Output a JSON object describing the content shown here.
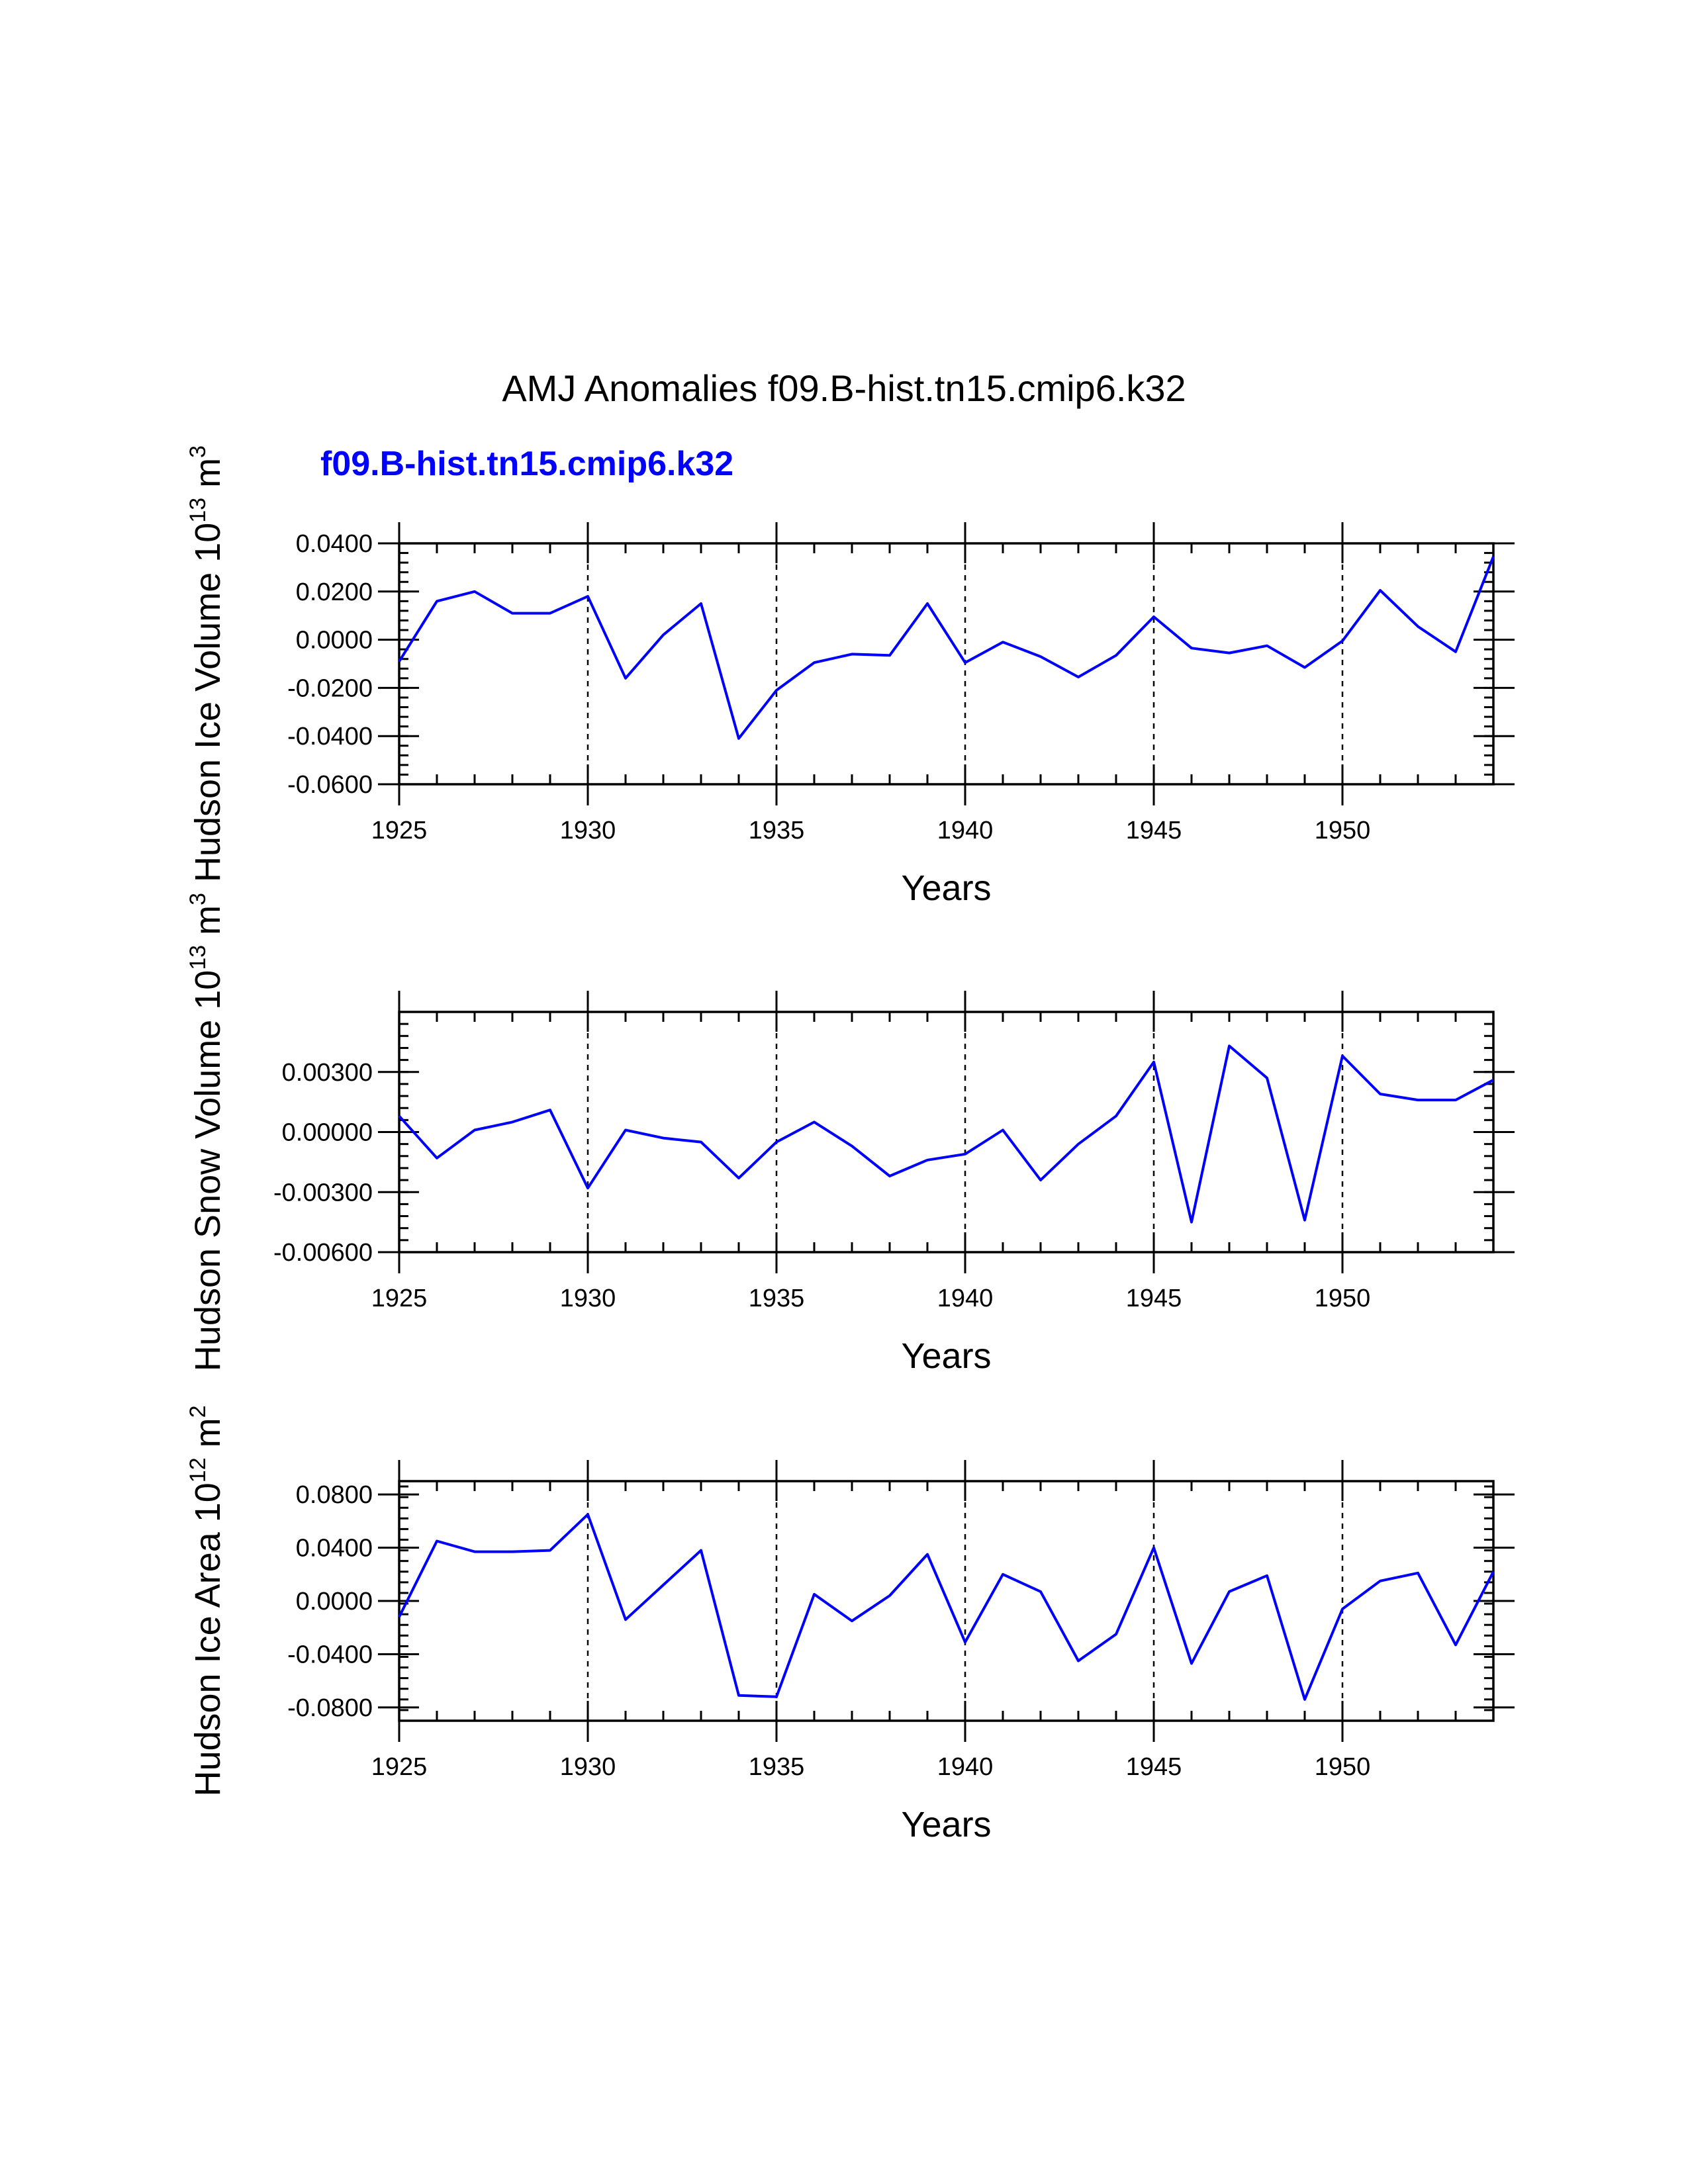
{
  "title": "AMJ Anomalies f09.B-hist.tn15.cmip6.k32",
  "subtitle": "f09.B-hist.tn15.cmip6.k32",
  "series_color": "#0000ff",
  "chart_data": [
    {
      "type": "line",
      "name": "ice-volume",
      "ylabel_main": "Hudson Ice Volume 10",
      "ylabel_exp": "13",
      "ylabel_unit": " m",
      "ylabel_unit_exp": "3",
      "xlabel": "Years",
      "xlim": [
        1925,
        1954
      ],
      "ylim": [
        -0.06,
        0.04
      ],
      "xticks": [
        1925,
        1930,
        1935,
        1940,
        1945,
        1950
      ],
      "xtick_labels": [
        "1925",
        "1930",
        "1935",
        "1940",
        "1945",
        "1950"
      ],
      "yticks": [
        -0.06,
        -0.04,
        -0.02,
        0.0,
        0.02,
        0.04
      ],
      "ytick_labels": [
        "-0.0600",
        "-0.0400",
        "-0.0200",
        "0.0000",
        "0.0200",
        "0.0400"
      ],
      "grid_x": [
        1930,
        1935,
        1940,
        1945,
        1950
      ],
      "x": [
        1925,
        1926,
        1927,
        1928,
        1929,
        1930,
        1931,
        1932,
        1933,
        1934,
        1935,
        1936,
        1937,
        1938,
        1939,
        1940,
        1941,
        1942,
        1943,
        1944,
        1945,
        1946,
        1947,
        1948,
        1949,
        1950,
        1951,
        1952,
        1953,
        1954
      ],
      "y": [
        -0.009,
        0.016,
        0.02,
        0.011,
        0.011,
        0.018,
        -0.016,
        0.002,
        0.015,
        -0.041,
        -0.021,
        -0.0095,
        -0.006,
        -0.0065,
        0.015,
        -0.0095,
        -0.001,
        -0.007,
        -0.0155,
        -0.0065,
        0.0095,
        -0.0035,
        -0.0055,
        -0.0025,
        -0.0115,
        -0.0005,
        0.0205,
        0.0055,
        -0.005,
        0.0345
      ]
    },
    {
      "type": "line",
      "name": "snow-volume",
      "ylabel_main": "Hudson Snow Volume 10",
      "ylabel_exp": "13",
      "ylabel_unit": " m",
      "ylabel_unit_exp": "3",
      "xlabel": "Years",
      "xlim": [
        1925,
        1954
      ],
      "ylim": [
        -0.006,
        0.006
      ],
      "xticks": [
        1925,
        1930,
        1935,
        1940,
        1945,
        1950
      ],
      "xtick_labels": [
        "1925",
        "1930",
        "1935",
        "1940",
        "1945",
        "1950"
      ],
      "yticks": [
        -0.006,
        -0.003,
        0.0,
        0.003
      ],
      "ytick_labels": [
        "-0.00600",
        "-0.00300",
        "0.00000",
        "0.00300"
      ],
      "grid_x": [
        1930,
        1935,
        1940,
        1945,
        1950
      ],
      "x": [
        1925,
        1926,
        1927,
        1928,
        1929,
        1930,
        1931,
        1932,
        1933,
        1934,
        1935,
        1936,
        1937,
        1938,
        1939,
        1940,
        1941,
        1942,
        1943,
        1944,
        1945,
        1946,
        1947,
        1948,
        1949,
        1950,
        1951,
        1952,
        1953,
        1954
      ],
      "y": [
        0.0008,
        -0.0013,
        0.0001,
        0.0005,
        0.0011,
        -0.0028,
        0.0001,
        -0.0003,
        -0.0005,
        -0.0023,
        -0.0005,
        0.0005,
        -0.0007,
        -0.0022,
        -0.0014,
        -0.0011,
        0.0001,
        -0.0024,
        -0.0006,
        0.0008,
        0.0035,
        -0.0045,
        0.0043,
        0.0027,
        -0.0044,
        0.0038,
        0.0019,
        0.0016,
        0.0016,
        0.0026
      ]
    },
    {
      "type": "line",
      "name": "ice-area",
      "ylabel_main": "Hudson Ice Area 10",
      "ylabel_exp": "12",
      "ylabel_unit": " m",
      "ylabel_unit_exp": "2",
      "xlabel": "Years",
      "xlim": [
        1925,
        1954
      ],
      "ylim": [
        -0.09,
        0.09
      ],
      "xticks": [
        1925,
        1930,
        1935,
        1940,
        1945,
        1950
      ],
      "xtick_labels": [
        "1925",
        "1930",
        "1935",
        "1940",
        "1945",
        "1950"
      ],
      "yticks": [
        -0.08,
        -0.04,
        0.0,
        0.04,
        0.08
      ],
      "ytick_labels": [
        "-0.0800",
        "-0.0400",
        "0.0000",
        "0.0400",
        "0.0800"
      ],
      "grid_x": [
        1930,
        1935,
        1940,
        1945,
        1950
      ],
      "x": [
        1925,
        1926,
        1927,
        1928,
        1929,
        1930,
        1931,
        1932,
        1933,
        1934,
        1935,
        1936,
        1937,
        1938,
        1939,
        1940,
        1941,
        1942,
        1943,
        1944,
        1945,
        1946,
        1947,
        1948,
        1949,
        1950,
        1951,
        1952,
        1953,
        1954
      ],
      "y": [
        -0.012,
        0.045,
        0.037,
        0.037,
        0.038,
        0.065,
        -0.014,
        0.012,
        0.038,
        -0.071,
        -0.072,
        0.005,
        -0.015,
        0.004,
        0.035,
        -0.031,
        0.02,
        0.007,
        -0.045,
        -0.025,
        0.04,
        -0.047,
        0.007,
        0.019,
        -0.074,
        -0.006,
        0.015,
        0.021,
        -0.033,
        0.022
      ]
    }
  ]
}
